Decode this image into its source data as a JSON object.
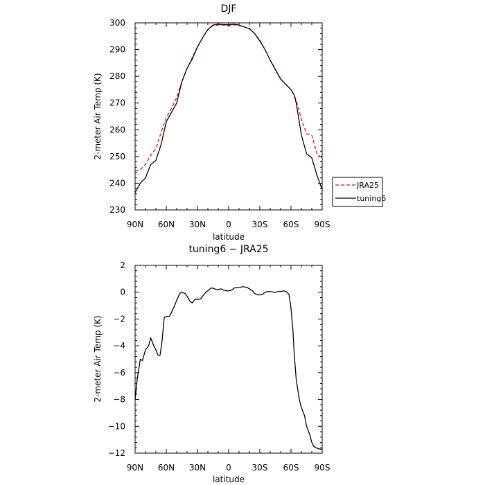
{
  "chart_data": [
    {
      "type": "line",
      "title": "DJF",
      "xlabel": "latitude",
      "ylabel": "2-meter Air Temp (K)",
      "xlim": [
        90,
        -90
      ],
      "ylim": [
        230,
        300
      ],
      "xticks": [
        {
          "value": 90,
          "label": "90N"
        },
        {
          "value": 60,
          "label": "60N"
        },
        {
          "value": 30,
          "label": "30N"
        },
        {
          "value": 0,
          "label": "0"
        },
        {
          "value": -30,
          "label": "30S"
        },
        {
          "value": -60,
          "label": "60S"
        },
        {
          "value": -90,
          "label": "90S"
        }
      ],
      "yticks": [
        230,
        240,
        250,
        260,
        270,
        280,
        290,
        300
      ],
      "legend": {
        "placement": "right",
        "entries": [
          "JRA25",
          "tuning6"
        ]
      },
      "series": [
        {
          "name": "JRA25",
          "color": "#ff0000",
          "style": "dashed",
          "x": [
            90,
            85,
            80,
            75,
            70,
            65,
            60,
            55,
            50,
            45,
            40,
            35,
            30,
            25,
            20,
            15,
            10,
            5,
            0,
            -5,
            -10,
            -15,
            -20,
            -25,
            -30,
            -35,
            -40,
            -45,
            -50,
            -55,
            -60,
            -63,
            -65,
            -70,
            -75,
            -80,
            -85,
            -90
          ],
          "y": [
            244.5,
            245,
            247,
            250.5,
            253,
            259,
            264.5,
            268,
            272,
            278,
            283,
            287,
            291,
            294.5,
            297.5,
            299,
            299.2,
            299.2,
            299,
            299.3,
            299,
            298.5,
            298,
            296,
            293.5,
            290,
            286,
            282.5,
            279,
            277,
            275,
            273,
            271,
            264,
            258.5,
            258,
            251,
            249.5
          ]
        },
        {
          "name": "tuning6",
          "color": "#000000",
          "style": "solid",
          "x": [
            90,
            85,
            80,
            75,
            70,
            65,
            60,
            55,
            50,
            45,
            40,
            35,
            30,
            25,
            20,
            15,
            10,
            5,
            0,
            -5,
            -10,
            -15,
            -20,
            -25,
            -30,
            -35,
            -40,
            -45,
            -50,
            -55,
            -60,
            -63,
            -65,
            -70,
            -75,
            -80,
            -85,
            -90
          ],
          "y": [
            236.5,
            240,
            242,
            247,
            248.5,
            254.5,
            263,
            266.5,
            270,
            278,
            283,
            286.5,
            291,
            294.5,
            297.5,
            299.2,
            299.5,
            299.3,
            299.3,
            299.5,
            299.2,
            298.5,
            297.8,
            296,
            293.2,
            290,
            286,
            282.5,
            279,
            277,
            275,
            273,
            270,
            258,
            251,
            249.5,
            243,
            237.5
          ]
        }
      ]
    },
    {
      "type": "line",
      "title": "tuning6 − JRA25",
      "xlabel": "latitude",
      "ylabel": "2-meter Air Temp (K)",
      "xlim": [
        90,
        -90
      ],
      "ylim": [
        -12,
        2
      ],
      "xticks": [
        {
          "value": 90,
          "label": "90N"
        },
        {
          "value": 60,
          "label": "60N"
        },
        {
          "value": 30,
          "label": "30N"
        },
        {
          "value": 0,
          "label": "0"
        },
        {
          "value": -30,
          "label": "30S"
        },
        {
          "value": -60,
          "label": "60S"
        },
        {
          "value": -90,
          "label": "90S"
        }
      ],
      "yticks": [
        {
          "value": 2,
          "label": "2"
        },
        {
          "value": 0,
          "label": "0"
        },
        {
          "value": -2,
          "label": "−2"
        },
        {
          "value": -4,
          "label": "−4"
        },
        {
          "value": -6,
          "label": "−6"
        },
        {
          "value": -8,
          "label": "−8"
        },
        {
          "value": -10,
          "label": "−10"
        },
        {
          "value": -12,
          "label": "−12"
        }
      ],
      "series": [
        {
          "color": "#000000",
          "style": "solid",
          "x": [
            90,
            88,
            85,
            83,
            80,
            77,
            75,
            72,
            70,
            68,
            66,
            64,
            62,
            60,
            57,
            55,
            52,
            50,
            47,
            45,
            42,
            40,
            37,
            35,
            32,
            30,
            27,
            25,
            22,
            20,
            17,
            15,
            12,
            10,
            7,
            5,
            2,
            0,
            -3,
            -5,
            -8,
            -10,
            -13,
            -15,
            -18,
            -20,
            -23,
            -25,
            -28,
            -30,
            -33,
            -35,
            -38,
            -40,
            -43,
            -45,
            -48,
            -50,
            -53,
            -55,
            -58,
            -60,
            -62,
            -63,
            -65,
            -68,
            -70,
            -73,
            -75,
            -78,
            -80,
            -82,
            -84,
            -86,
            -88,
            -90
          ],
          "y": [
            -8,
            -6.5,
            -5,
            -5.1,
            -4.3,
            -4,
            -3.4,
            -4,
            -4.3,
            -4.7,
            -4.7,
            -3.6,
            -1.9,
            -1.8,
            -1.8,
            -1.5,
            -1,
            -0.6,
            -0.1,
            0,
            -0.1,
            -0.3,
            -0.7,
            -0.8,
            -0.5,
            -0.55,
            -0.5,
            -0.3,
            0,
            0.1,
            0.3,
            0.3,
            0.2,
            0.2,
            0.25,
            0.15,
            0.1,
            0.1,
            0.15,
            0.3,
            0.35,
            0.35,
            0.4,
            0.4,
            0.35,
            0.25,
            0.1,
            -0.1,
            -0.2,
            -0.2,
            -0.15,
            0,
            0.05,
            0.05,
            0,
            0,
            0.05,
            0.05,
            0.1,
            0.05,
            -0.15,
            -1.2,
            -3,
            -4.5,
            -6.5,
            -8,
            -8.6,
            -9.2,
            -10,
            -10.6,
            -11.2,
            -11.5,
            -11.6,
            -11.65,
            -11.7,
            -11.7
          ]
        }
      ]
    }
  ]
}
